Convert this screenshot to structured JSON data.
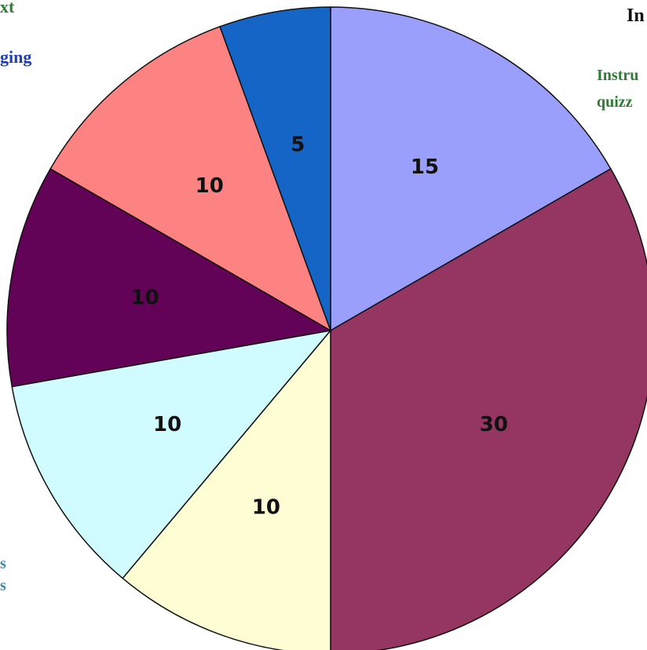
{
  "chart_data": {
    "type": "pie",
    "title_fragment": "In",
    "values": [
      15,
      30,
      10,
      10,
      10,
      10,
      5
    ],
    "data_labels": [
      "15",
      "30",
      "10",
      "10",
      "10",
      "10",
      "5"
    ],
    "colors": [
      "#9b9ffc",
      "#943562",
      "#fffdd4",
      "#d0fcff",
      "#630358",
      "#fd8282",
      "#1465c6"
    ],
    "start": "12 o'clock",
    "direction": "clockwise",
    "legend_fragments": [
      {
        "text": "xt",
        "color": "#2e7d32"
      },
      {
        "text": "ging",
        "color": "#1f3fb8"
      },
      {
        "text": "Instru",
        "color": "#2e7d32"
      },
      {
        "text": "quizz",
        "color": "#2e7d32"
      },
      {
        "text": "s",
        "color": "#3a8bb0"
      },
      {
        "text": "s",
        "color": "#3a8bb0"
      }
    ]
  }
}
